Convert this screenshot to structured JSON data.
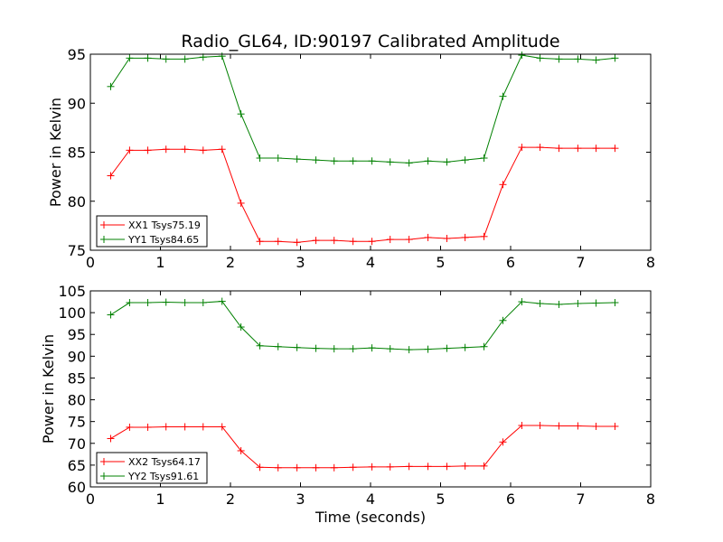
{
  "chart_data": [
    {
      "type": "line",
      "title": "Radio_GL64, ID:90197 Calibrated Amplitude",
      "xlabel": "",
      "ylabel": "Power in Kelvin",
      "xlim": [
        0,
        8
      ],
      "ylim": [
        75,
        95
      ],
      "xticks": [
        0,
        1,
        2,
        3,
        4,
        5,
        6,
        7,
        8
      ],
      "yticks": [
        75,
        80,
        85,
        90,
        95
      ],
      "grid": false,
      "legend_position": "lower-left",
      "x": [
        0.29,
        0.56,
        0.82,
        1.08,
        1.35,
        1.61,
        1.88,
        2.15,
        2.42,
        2.68,
        2.95,
        3.22,
        3.48,
        3.75,
        4.02,
        4.28,
        4.55,
        4.82,
        5.09,
        5.35,
        5.62,
        5.89,
        6.16,
        6.42,
        6.69,
        6.96,
        7.22,
        7.49
      ],
      "series": [
        {
          "name": "XX1 Tsys75.19",
          "color": "#ff0000",
          "values": [
            82.6,
            85.2,
            85.2,
            85.3,
            85.3,
            85.2,
            85.3,
            79.8,
            75.9,
            75.9,
            75.8,
            76.0,
            76.0,
            75.9,
            75.9,
            76.1,
            76.1,
            76.3,
            76.2,
            76.3,
            76.4,
            81.7,
            85.5,
            85.5,
            85.4,
            85.4,
            85.4,
            85.4
          ],
          "x_override": [
            0.29,
            0.56,
            0.82,
            1.08,
            1.35,
            1.61,
            1.88,
            2.15,
            2.42,
            2.68,
            2.95,
            3.22,
            3.48,
            3.75,
            4.02,
            4.28,
            4.55,
            4.82,
            5.09,
            5.35,
            5.62,
            5.89,
            6.16,
            6.42,
            6.69,
            6.96,
            7.22,
            7.49
          ]
        },
        {
          "name": "YY1 Tsys84.65",
          "color": "#008000",
          "values": [
            91.7,
            94.6,
            94.6,
            94.5,
            94.5,
            94.7,
            94.8,
            88.9,
            84.4,
            84.4,
            84.3,
            84.2,
            84.1,
            84.1,
            84.1,
            84.0,
            83.9,
            84.1,
            84.0,
            84.2,
            84.4,
            90.7,
            94.9,
            94.6,
            94.5,
            94.5,
            94.4,
            94.6
          ]
        }
      ]
    },
    {
      "type": "line",
      "title": "",
      "xlabel": "Time (seconds)",
      "ylabel": "Power in Kelvin",
      "xlim": [
        0,
        8
      ],
      "ylim": [
        60,
        105
      ],
      "xticks": [
        0,
        1,
        2,
        3,
        4,
        5,
        6,
        7,
        8
      ],
      "yticks": [
        60,
        65,
        70,
        75,
        80,
        85,
        90,
        95,
        100,
        105
      ],
      "grid": false,
      "legend_position": "lower-left",
      "x": [
        0.29,
        0.56,
        0.82,
        1.08,
        1.35,
        1.61,
        1.88,
        2.15,
        2.42,
        2.68,
        2.95,
        3.22,
        3.48,
        3.75,
        4.02,
        4.28,
        4.55,
        4.82,
        5.09,
        5.35,
        5.62,
        5.89,
        6.16,
        6.42,
        6.69,
        6.96,
        7.22,
        7.49
      ],
      "series": [
        {
          "name": "XX2 Tsys64.17",
          "color": "#ff0000",
          "values": [
            71.1,
            73.7,
            73.7,
            73.8,
            73.8,
            73.8,
            73.8,
            68.3,
            64.5,
            64.4,
            64.4,
            64.4,
            64.4,
            64.5,
            64.6,
            64.6,
            64.7,
            64.7,
            64.7,
            64.8,
            64.8,
            70.3,
            74.1,
            74.1,
            74.0,
            74.0,
            73.9,
            73.9
          ]
        },
        {
          "name": "YY2 Tsys91.61",
          "color": "#008000",
          "values": [
            99.5,
            102.3,
            102.3,
            102.4,
            102.3,
            102.3,
            102.6,
            96.7,
            92.4,
            92.2,
            92.0,
            91.8,
            91.7,
            91.7,
            91.9,
            91.7,
            91.5,
            91.6,
            91.8,
            92.0,
            92.2,
            98.2,
            102.5,
            102.1,
            101.9,
            102.1,
            102.2,
            102.3
          ]
        }
      ]
    }
  ]
}
